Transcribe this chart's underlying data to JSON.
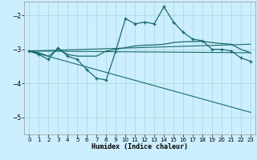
{
  "xlabel": "Humidex (Indice chaleur)",
  "background_color": "#cceeff",
  "line_color": "#1a6b6b",
  "grid_color": "#aadddd",
  "xlim": [
    -0.5,
    23.5
  ],
  "ylim": [
    -5.5,
    -1.6
  ],
  "yticks": [
    -5,
    -4,
    -3,
    -2
  ],
  "xticks": [
    0,
    1,
    2,
    3,
    4,
    5,
    6,
    7,
    8,
    9,
    10,
    11,
    12,
    13,
    14,
    15,
    16,
    17,
    18,
    19,
    20,
    21,
    22,
    23
  ],
  "line1_x": [
    0,
    1,
    2,
    3,
    4,
    5,
    6,
    7,
    8,
    9,
    10,
    11,
    12,
    13,
    14,
    15,
    16,
    17,
    18,
    19,
    20,
    21,
    22,
    23
  ],
  "line1_y": [
    -3.05,
    -3.15,
    -3.3,
    -2.95,
    -3.2,
    -3.3,
    -3.6,
    -3.85,
    -3.9,
    -3.05,
    -2.1,
    -2.25,
    -2.2,
    -2.25,
    -1.75,
    -2.2,
    -2.5,
    -2.7,
    -2.75,
    -3.0,
    -3.0,
    -3.05,
    -3.25,
    -3.35
  ],
  "line2_x": [
    0,
    1,
    2,
    3,
    4,
    5,
    6,
    7,
    8,
    9,
    10,
    11,
    12,
    13,
    14,
    15,
    16,
    17,
    18,
    19,
    20,
    21,
    22,
    23
  ],
  "line2_y": [
    -3.05,
    -3.1,
    -3.2,
    -3.0,
    -3.15,
    -3.2,
    -3.2,
    -3.2,
    -3.05,
    -3.0,
    -2.95,
    -2.9,
    -2.88,
    -2.87,
    -2.85,
    -2.8,
    -2.78,
    -2.77,
    -2.77,
    -2.8,
    -2.83,
    -2.85,
    -3.0,
    -3.1
  ],
  "line3_x": [
    0,
    23
  ],
  "line3_y": [
    -3.05,
    -2.85
  ],
  "line4_x": [
    0,
    23
  ],
  "line4_y": [
    -3.05,
    -3.1
  ],
  "line5_x": [
    0,
    23
  ],
  "line5_y": [
    -3.05,
    -4.85
  ]
}
